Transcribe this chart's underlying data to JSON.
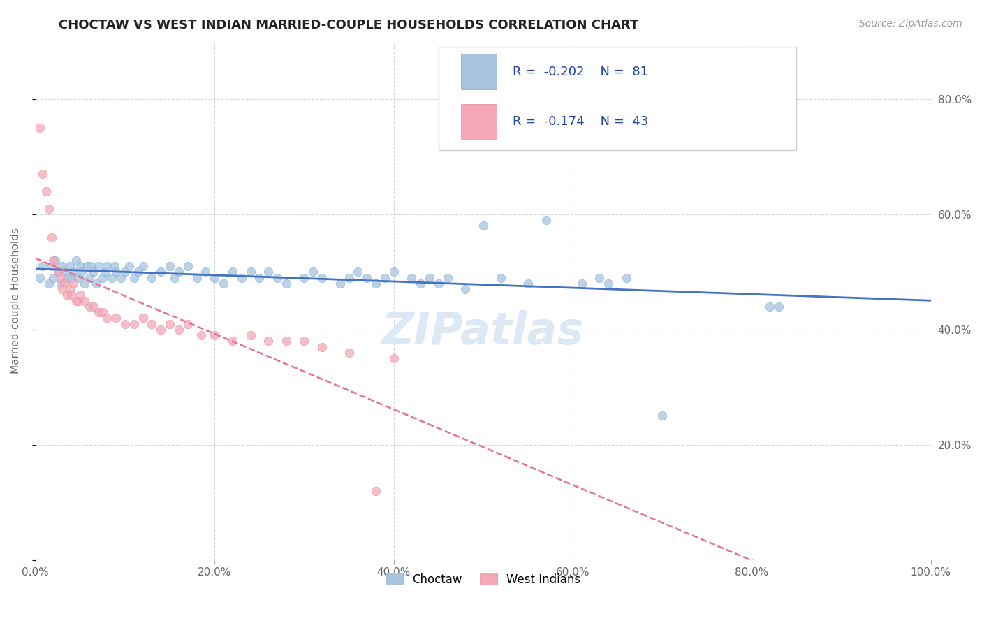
{
  "title": "CHOCTAW VS WEST INDIAN MARRIED-COUPLE HOUSEHOLDS CORRELATION CHART",
  "source": "Source: ZipAtlas.com",
  "ylabel": "Married-couple Households",
  "legend_label1": "Choctaw",
  "legend_label2": "West Indians",
  "r1": -0.202,
  "n1": 81,
  "r2": -0.174,
  "n2": 43,
  "choctaw_color": "#a8c4e0",
  "choctaw_edge_color": "#7aaed0",
  "west_indian_color": "#f4a8b8",
  "west_indian_edge_color": "#e88aa0",
  "choctaw_line_color": "#4472c4",
  "west_indian_line_color": "#e87090",
  "background_color": "#ffffff",
  "grid_color": "#d0d0e0",
  "watermark_color": "#dce8f4",
  "choctaw_x": [
    0.005,
    0.008,
    0.015,
    0.018,
    0.02,
    0.022,
    0.025,
    0.028,
    0.03,
    0.032,
    0.035,
    0.038,
    0.04,
    0.042,
    0.045,
    0.048,
    0.05,
    0.052,
    0.055,
    0.058,
    0.06,
    0.062,
    0.065,
    0.068,
    0.07,
    0.075,
    0.078,
    0.08,
    0.085,
    0.088,
    0.09,
    0.095,
    0.1,
    0.105,
    0.11,
    0.115,
    0.12,
    0.13,
    0.14,
    0.15,
    0.155,
    0.16,
    0.17,
    0.18,
    0.19,
    0.2,
    0.21,
    0.22,
    0.23,
    0.24,
    0.25,
    0.26,
    0.27,
    0.28,
    0.3,
    0.31,
    0.32,
    0.34,
    0.35,
    0.36,
    0.37,
    0.38,
    0.39,
    0.4,
    0.42,
    0.43,
    0.44,
    0.45,
    0.46,
    0.48,
    0.5,
    0.52,
    0.55,
    0.57,
    0.61,
    0.63,
    0.64,
    0.66,
    0.7,
    0.82,
    0.83
  ],
  "choctaw_y": [
    0.49,
    0.51,
    0.48,
    0.51,
    0.49,
    0.52,
    0.5,
    0.48,
    0.51,
    0.5,
    0.49,
    0.51,
    0.49,
    0.5,
    0.52,
    0.49,
    0.51,
    0.5,
    0.48,
    0.51,
    0.49,
    0.51,
    0.5,
    0.48,
    0.51,
    0.49,
    0.5,
    0.51,
    0.49,
    0.51,
    0.5,
    0.49,
    0.5,
    0.51,
    0.49,
    0.5,
    0.51,
    0.49,
    0.5,
    0.51,
    0.49,
    0.5,
    0.51,
    0.49,
    0.5,
    0.49,
    0.48,
    0.5,
    0.49,
    0.5,
    0.49,
    0.5,
    0.49,
    0.48,
    0.49,
    0.5,
    0.49,
    0.48,
    0.49,
    0.5,
    0.49,
    0.48,
    0.49,
    0.5,
    0.49,
    0.48,
    0.49,
    0.48,
    0.49,
    0.47,
    0.58,
    0.49,
    0.48,
    0.59,
    0.48,
    0.49,
    0.48,
    0.49,
    0.25,
    0.44,
    0.44
  ],
  "west_indian_x": [
    0.005,
    0.008,
    0.012,
    0.015,
    0.018,
    0.02,
    0.025,
    0.028,
    0.03,
    0.032,
    0.035,
    0.038,
    0.04,
    0.042,
    0.045,
    0.048,
    0.05,
    0.055,
    0.06,
    0.065,
    0.07,
    0.075,
    0.08,
    0.09,
    0.1,
    0.11,
    0.12,
    0.13,
    0.14,
    0.15,
    0.16,
    0.17,
    0.185,
    0.2,
    0.22,
    0.24,
    0.26,
    0.28,
    0.3,
    0.32,
    0.35,
    0.38,
    0.4
  ],
  "west_indian_y": [
    0.75,
    0.67,
    0.64,
    0.61,
    0.56,
    0.52,
    0.5,
    0.49,
    0.47,
    0.48,
    0.46,
    0.47,
    0.46,
    0.48,
    0.45,
    0.45,
    0.46,
    0.45,
    0.44,
    0.44,
    0.43,
    0.43,
    0.42,
    0.42,
    0.41,
    0.41,
    0.42,
    0.41,
    0.4,
    0.41,
    0.4,
    0.41,
    0.39,
    0.39,
    0.38,
    0.39,
    0.38,
    0.38,
    0.38,
    0.37,
    0.36,
    0.12,
    0.35
  ],
  "xlim": [
    0.0,
    1.0
  ],
  "ylim": [
    0.0,
    0.9
  ],
  "yticks": [
    0.0,
    0.2,
    0.4,
    0.6,
    0.8
  ],
  "ytick_labels_right": [
    "",
    "20.0%",
    "40.0%",
    "60.0%",
    "80.0%"
  ],
  "xticks": [
    0.0,
    0.2,
    0.4,
    0.6,
    0.8,
    1.0
  ],
  "xtick_labels": [
    "0.0%",
    "20.0%",
    "40.0%",
    "60.0%",
    "80.0%",
    "100.0%"
  ]
}
